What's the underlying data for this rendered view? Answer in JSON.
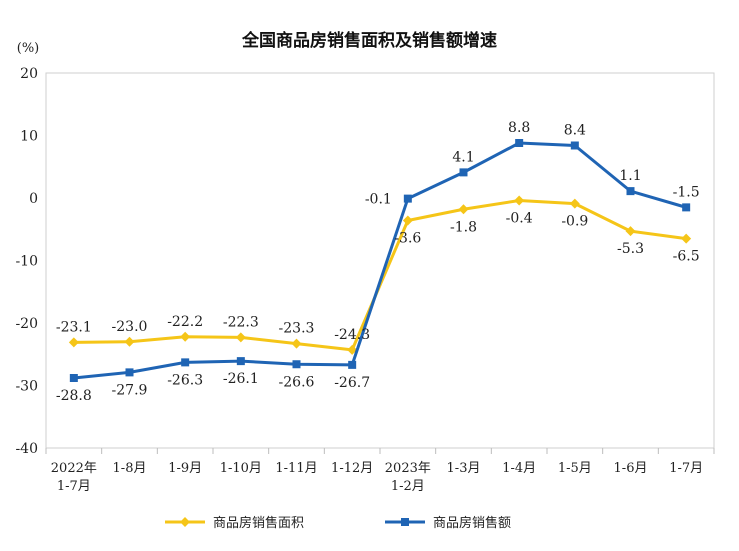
{
  "chart_data": {
    "type": "line",
    "title": "全国商品房销售面积及销售额增速",
    "ylabel": "(%)",
    "xlabel": "",
    "ylim": [
      -40,
      20
    ],
    "yticks": [
      20,
      10,
      0,
      -10,
      -20,
      -30,
      -40
    ],
    "grid": false,
    "legend_position": "bottom",
    "categories": [
      [
        "2022年",
        "1-7月"
      ],
      [
        "1-8月"
      ],
      [
        "1-9月"
      ],
      [
        "1-10月"
      ],
      [
        "1-11月"
      ],
      [
        "1-12月"
      ],
      [
        "2023年",
        "1-2月"
      ],
      [
        "1-3月"
      ],
      [
        "1-4月"
      ],
      [
        "1-5月"
      ],
      [
        "1-6月"
      ],
      [
        "1-7月"
      ]
    ],
    "series": [
      {
        "name": "商品房销售面积",
        "color": "#F5C518",
        "marker": "diamond",
        "values": [
          -23.1,
          -23.0,
          -22.2,
          -22.3,
          -23.3,
          -24.3,
          -3.6,
          -1.8,
          -0.4,
          -0.9,
          -5.3,
          -6.5
        ],
        "labels": [
          "-23.1",
          "-23.0",
          "-22.2",
          "-22.3",
          "-23.3",
          "-24.3",
          "-3.6",
          "-1.8",
          "-0.4",
          "-0.9",
          "-5.3",
          "-6.5"
        ],
        "label_side": [
          "above",
          "above",
          "above",
          "above",
          "above",
          "above",
          "below",
          "below",
          "below",
          "below",
          "below",
          "below"
        ]
      },
      {
        "name": "商品房销售额",
        "color": "#1F64B4",
        "marker": "square",
        "values": [
          -28.8,
          -27.9,
          -26.3,
          -26.1,
          -26.6,
          -26.7,
          -0.1,
          4.1,
          8.8,
          8.4,
          1.1,
          -1.5
        ],
        "labels": [
          "-28.8",
          "-27.9",
          "-26.3",
          "-26.1",
          "-26.6",
          "-26.7",
          "-0.1",
          "4.1",
          "8.8",
          "8.4",
          "1.1",
          "-1.5"
        ],
        "label_side": [
          "below",
          "below",
          "below",
          "below",
          "below",
          "below",
          "left",
          "above",
          "above",
          "above",
          "above",
          "above"
        ]
      }
    ]
  }
}
